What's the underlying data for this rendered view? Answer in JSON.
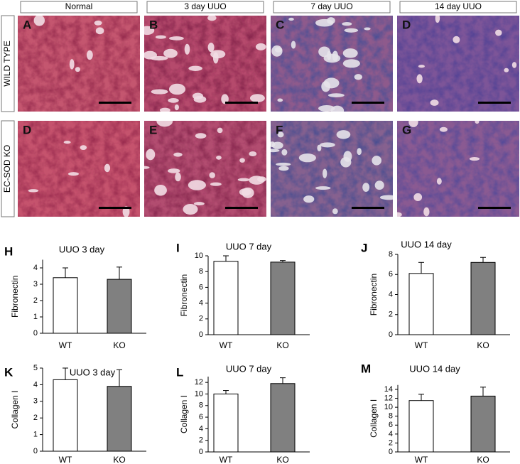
{
  "figure": {
    "columns": [
      "Normal",
      "3 day UUO",
      "7 day UUO",
      "14 day UUO"
    ],
    "rows": [
      "WILD TYPE",
      "EC-SOD KO"
    ],
    "panels": [
      [
        "A",
        "B",
        "C",
        "D"
      ],
      [
        "D",
        "E",
        "F",
        "G"
      ]
    ]
  },
  "chart_data": [
    {
      "type": "bar",
      "panel": "H",
      "title": "UUO 3 day",
      "ylabel": "Fibronectin",
      "categories": [
        "WT",
        "KO"
      ],
      "values": [
        3.4,
        3.3
      ],
      "errors": [
        0.6,
        0.75
      ],
      "colors": [
        "#ffffff",
        "#808080"
      ],
      "ylim": [
        0,
        4.5
      ],
      "yticks": [
        0,
        1,
        2,
        3,
        4
      ]
    },
    {
      "type": "bar",
      "panel": "I",
      "title": "UUO 7 day",
      "ylabel": "Fibronectin",
      "categories": [
        "WT",
        "KO"
      ],
      "values": [
        9.3,
        9.2
      ],
      "errors": [
        0.7,
        0.2
      ],
      "colors": [
        "#ffffff",
        "#808080"
      ],
      "ylim": [
        0,
        10
      ],
      "yticks": [
        0,
        2,
        4,
        6,
        8,
        10
      ]
    },
    {
      "type": "bar",
      "panel": "J",
      "title": "UUO 14 day",
      "ylabel": "Fibronectin",
      "categories": [
        "WT",
        "KO"
      ],
      "values": [
        6.1,
        7.2
      ],
      "errors": [
        1.1,
        0.5
      ],
      "colors": [
        "#ffffff",
        "#808080"
      ],
      "ylim": [
        0,
        8
      ],
      "yticks": [
        0,
        2,
        4,
        6,
        8
      ]
    },
    {
      "type": "bar",
      "panel": "K",
      "title": "UUO 3 day",
      "ylabel": "Collagen I",
      "categories": [
        "WT",
        "KO"
      ],
      "values": [
        4.3,
        3.9
      ],
      "errors": [
        0.7,
        1.0
      ],
      "colors": [
        "#ffffff",
        "#808080"
      ],
      "ylim": [
        0,
        5
      ],
      "yticks": [
        0,
        1,
        2,
        3,
        4,
        5
      ]
    },
    {
      "type": "bar",
      "panel": "L",
      "title": "UUO 7 day",
      "ylabel": "Collagen I",
      "categories": [
        "WT",
        "KO"
      ],
      "values": [
        10,
        11.8
      ],
      "errors": [
        0.6,
        1.0
      ],
      "colors": [
        "#ffffff",
        "#808080"
      ],
      "ylim": [
        0,
        13
      ],
      "yticks": [
        0,
        2,
        4,
        6,
        8,
        10,
        12
      ]
    },
    {
      "type": "bar",
      "panel": "M",
      "title": "UUO 14 day",
      "ylabel": "Collagen I",
      "categories": [
        "WT",
        "KO"
      ],
      "values": [
        11.5,
        12.5
      ],
      "errors": [
        1.4,
        2.0
      ],
      "colors": [
        "#ffffff",
        "#808080"
      ],
      "ylim": [
        0,
        15
      ],
      "yticks": [
        0,
        2,
        4,
        6,
        8,
        10,
        12,
        14
      ]
    }
  ]
}
